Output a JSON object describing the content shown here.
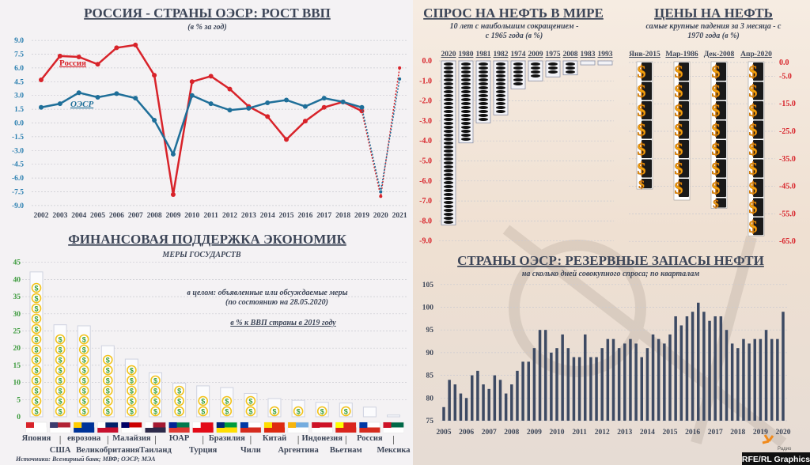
{
  "colors": {
    "russia": "#d8232a",
    "oecd": "#1f6f99",
    "navy": "#3d4658",
    "gold": "#f2c21b",
    "bar": "#3d4a63"
  },
  "gdp_panel": {
    "title": "РОССИЯ - СТРАНЫ ОЭСР: РОСТ ВВП",
    "subtitle": "(в % за год)",
    "russia_label": "Россия",
    "oecd_label": "ОЭСР"
  },
  "support_panel": {
    "title": "ФИНАНСОВАЯ ПОДДЕРЖКА ЭКОНОМИК",
    "subtitle": "МЕРЫ ГОСУДАРСТВ",
    "note1": "в целом: объявленные или обсуждаемые меры",
    "note2": "(по состоянию на 28.05.2020)",
    "note3": "в % к ВВП страны в 2019 году",
    "source": "Источники: Всемирный банк; МВФ; ОЭСР; МЭА"
  },
  "demand_panel": {
    "title": "СПРОС НА НЕФТЬ В МИРЕ",
    "subtitle1": "10 лет с наибольшим сокращением -",
    "subtitle2": "с 1965 года (в %)"
  },
  "price_panel": {
    "title": "ЦЕНЫ НА НЕФТЬ",
    "subtitle1": "самые крупные падения за 3 месяца - с",
    "subtitle2": "1970 года (в %)"
  },
  "reserves_panel": {
    "title": "СТРАНЫ ОЭСР: РЕЗЕРВНЫЕ ЗАПАСЫ НЕФТИ",
    "subtitle": "на сколько дней совокупного спроса; по кварталам"
  },
  "branding": {
    "radio": "Радио",
    "credit": "RFE/RL Graphics"
  },
  "chart_data": [
    {
      "type": "line",
      "title": "РОССИЯ - СТРАНЫ ОЭСР: РОСТ ВВП",
      "ylabel": "в % за год",
      "ylim": [
        -9,
        9
      ],
      "yticks": [
        "9.0",
        "7.5",
        "6.0",
        "4.5",
        "3.0",
        "1.5",
        "0.0",
        "-1.5",
        "-3.0",
        "-4.5",
        "-6.0",
        "-7.5",
        "-9.0"
      ],
      "x": [
        "2002",
        "2003",
        "2004",
        "2005",
        "2006",
        "2007",
        "2008",
        "2009",
        "2010",
        "2011",
        "2012",
        "2013",
        "2014",
        "2015",
        "2016",
        "2017",
        "2018",
        "2019",
        "2020",
        "2021"
      ],
      "series": [
        {
          "name": "Россия",
          "values": [
            4.7,
            7.3,
            7.2,
            6.4,
            8.2,
            8.5,
            5.2,
            -7.8,
            4.5,
            5.1,
            3.7,
            1.8,
            0.7,
            -1.8,
            0.2,
            1.7,
            2.3,
            1.3,
            -8.0,
            6.0
          ]
        },
        {
          "name": "ОЭСР",
          "values": [
            1.7,
            2.1,
            3.3,
            2.8,
            3.2,
            2.7,
            0.3,
            -3.4,
            3.0,
            2.1,
            1.4,
            1.6,
            2.2,
            2.5,
            1.8,
            2.7,
            2.3,
            1.7,
            -7.5,
            4.8
          ]
        }
      ],
      "forecast_from": "2019"
    },
    {
      "type": "bar",
      "title": "ФИНАНСОВАЯ ПОДДЕРЖКА ЭКОНОМИК",
      "ylim": [
        0,
        45
      ],
      "yticks": [
        "0",
        "5",
        "10",
        "15",
        "20",
        "25",
        "30",
        "35",
        "40",
        "45"
      ],
      "categories": [
        "Япония",
        "США",
        "еврозона",
        "Великобритания",
        "Малайзия",
        "Таиланд",
        "ЮАР",
        "Турция",
        "Бразилия",
        "Чили",
        "Китай",
        "Аргентина",
        "Индонезия",
        "Вьетнам",
        "Россия",
        "Мексика"
      ],
      "values": [
        42.2,
        26.8,
        26.5,
        20.7,
        16.8,
        12.8,
        9.8,
        9.0,
        8.5,
        6.8,
        5.3,
        4.8,
        4.2,
        4.0,
        2.8,
        0.5
      ],
      "flags": [
        [
          "#ffffff",
          "#ffffff",
          "#d8232a"
        ],
        [
          "#b22234",
          "#ffffff",
          "#3c3b6e"
        ],
        [
          "#003399",
          "#003399",
          "#ffcc00"
        ],
        [
          "#012169",
          "#c8102e",
          "#ffffff"
        ],
        [
          "#cc0001",
          "#ffffff",
          "#010066"
        ],
        [
          "#a51931",
          "#2d2a4a",
          "#ffffff"
        ],
        [
          "#007a4d",
          "#de3831",
          "#002395"
        ],
        [
          "#e30a17",
          "#e30a17",
          "#ffffff"
        ],
        [
          "#009c3b",
          "#ffdf00",
          "#002776"
        ],
        [
          "#ffffff",
          "#d52b1e",
          "#0039a6"
        ],
        [
          "#de2910",
          "#de2910",
          "#ffde00"
        ],
        [
          "#74acdf",
          "#ffffff",
          "#f6b40e"
        ],
        [
          "#ce1126",
          "#ffffff",
          "#ce1126"
        ],
        [
          "#da251d",
          "#da251d",
          "#ffff00"
        ],
        [
          "#ffffff",
          "#d52b1e",
          "#0039a6"
        ],
        [
          "#006847",
          "#ffffff",
          "#ce1126"
        ]
      ]
    },
    {
      "type": "bar",
      "title": "СПРОС НА НЕФТЬ В МИРЕ",
      "ylim": [
        -9,
        0
      ],
      "yticks": [
        "0.0",
        "-1.0",
        "-2.0",
        "-3.0",
        "-4.0",
        "-5.0",
        "-6.0",
        "-7.0",
        "-8.0",
        "-9.0"
      ],
      "categories": [
        "2020",
        "1980",
        "1981",
        "1982",
        "1974",
        "2009",
        "1975",
        "2008",
        "1983",
        "1993"
      ],
      "values": [
        -8.2,
        -4.1,
        -3.1,
        -2.7,
        -1.4,
        -1.0,
        -0.8,
        -0.7,
        -0.2,
        -0.2
      ]
    },
    {
      "type": "bar",
      "title": "ЦЕНЫ НА НЕФТЬ",
      "ylim": [
        -65,
        0
      ],
      "yticks": [
        "0.0",
        "-5.0",
        "-15.0",
        "-25.0",
        "-35.0",
        "-45.0",
        "-55.0",
        "-65.0"
      ],
      "categories": [
        "Янв-2015",
        "Мар-1986",
        "Дек-2008",
        "Апр-2020"
      ],
      "values": [
        -46,
        -50,
        -53,
        -63
      ]
    },
    {
      "type": "bar",
      "title": "СТРАНЫ ОЭСР: РЕЗЕРВНЫЕ ЗАПАСЫ НЕФТИ",
      "ylim": [
        75,
        105
      ],
      "yticks": [
        "75",
        "80",
        "85",
        "90",
        "95",
        "100",
        "105"
      ],
      "xlabels": [
        "2005",
        "2006",
        "2007",
        "2008",
        "2009",
        "2010",
        "2011",
        "2012",
        "2013",
        "2014",
        "2015",
        "2016",
        "2017",
        "2018",
        "2019",
        "2020"
      ],
      "values": [
        78,
        84,
        83,
        81,
        80,
        85,
        86,
        83,
        82,
        85,
        84,
        81,
        83,
        86,
        88,
        88,
        91,
        95,
        95,
        90,
        91,
        94,
        91,
        89,
        89,
        94,
        89,
        89,
        91,
        93,
        93,
        91,
        92,
        93,
        92,
        89,
        91,
        94,
        93,
        92,
        94,
        98,
        96,
        98,
        99,
        101,
        99,
        97,
        98,
        98,
        95,
        92,
        91,
        93,
        92,
        93,
        93,
        95,
        93,
        93,
        99
      ]
    }
  ]
}
